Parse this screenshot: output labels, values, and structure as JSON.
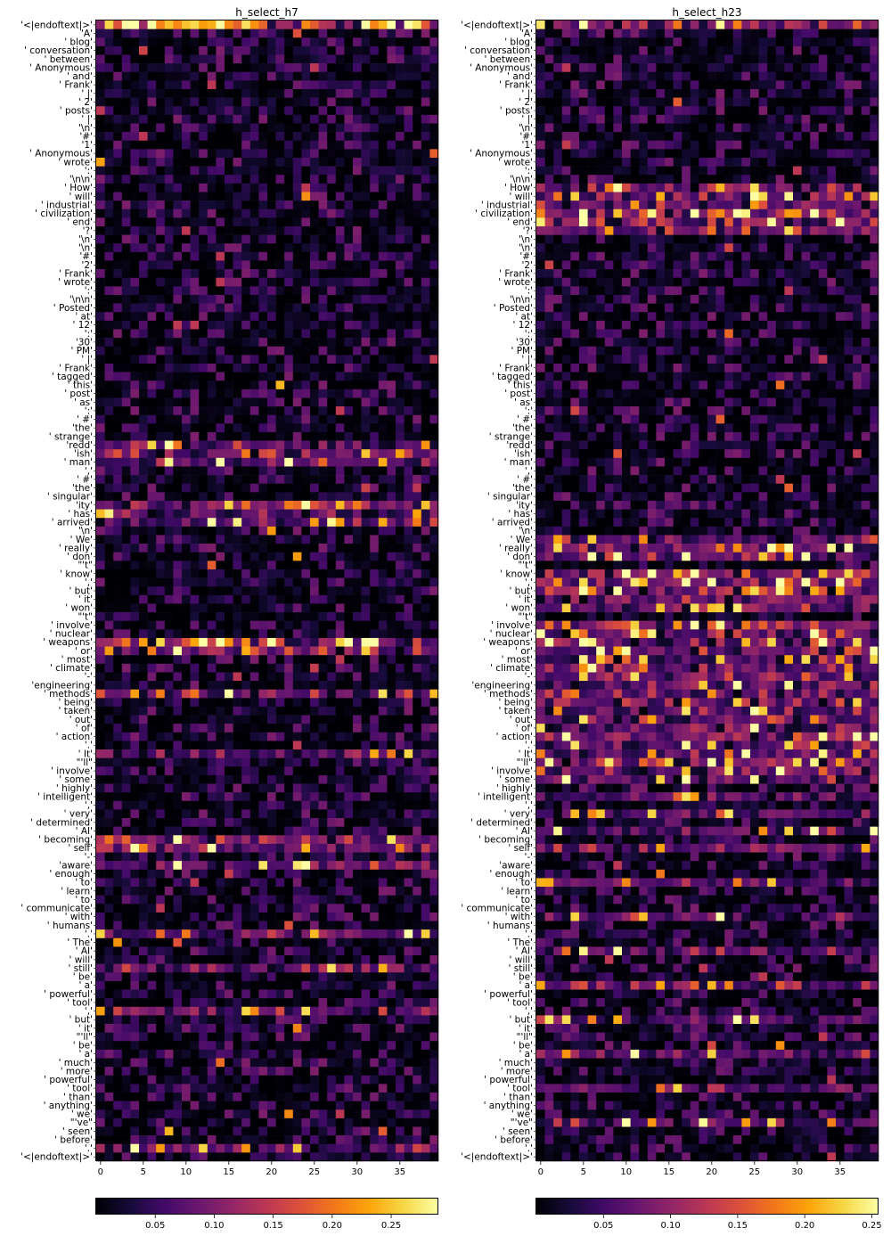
{
  "chart_data": [
    {
      "type": "heatmap",
      "title": "h_select_h7",
      "colormap": "inferno",
      "value_range": [
        0.0,
        0.29
      ],
      "n_columns": 40,
      "x_ticks": [
        "0",
        "5",
        "10",
        "15",
        "20",
        "25",
        "30",
        "35"
      ],
      "colorbar_ticks": [
        "0.05",
        "0.10",
        "0.15",
        "0.20",
        "0.25"
      ],
      "row_highlights": [
        {
          "row": 0,
          "intensity": 0.75
        },
        {
          "row": 49,
          "intensity": 0.28
        },
        {
          "row": 50,
          "intensity": 0.35
        },
        {
          "row": 51,
          "intensity": 0.28
        },
        {
          "row": 56,
          "intensity": 0.42
        },
        {
          "row": 57,
          "intensity": 0.25
        },
        {
          "row": 58,
          "intensity": 0.25
        },
        {
          "row": 72,
          "intensity": 0.45
        },
        {
          "row": 73,
          "intensity": 0.4
        },
        {
          "row": 78,
          "intensity": 0.35
        },
        {
          "row": 85,
          "intensity": 0.25
        },
        {
          "row": 95,
          "intensity": 0.4
        },
        {
          "row": 96,
          "intensity": 0.35
        },
        {
          "row": 98,
          "intensity": 0.35
        },
        {
          "row": 106,
          "intensity": 0.35
        },
        {
          "row": 110,
          "intensity": 0.3
        },
        {
          "row": 115,
          "intensity": 0.3
        },
        {
          "row": 131,
          "intensity": 0.25
        }
      ]
    },
    {
      "type": "heatmap",
      "title": "h_select_h23",
      "colormap": "inferno",
      "value_range": [
        0.0,
        0.255
      ],
      "n_columns": 40,
      "x_ticks": [
        "0",
        "5",
        "10",
        "15",
        "20",
        "25",
        "30",
        "35"
      ],
      "colorbar_ticks": [
        "0.05",
        "0.10",
        "0.15",
        "0.20",
        "0.25"
      ],
      "row_highlights": [
        {
          "row": 0,
          "intensity": 0.4
        },
        {
          "row": 19,
          "intensity": 0.35
        },
        {
          "row": 20,
          "intensity": 0.3
        },
        {
          "row": 21,
          "intensity": 0.35
        },
        {
          "row": 22,
          "intensity": 0.45
        },
        {
          "row": 23,
          "intensity": 0.5
        },
        {
          "row": 24,
          "intensity": 0.4
        },
        {
          "row": 60,
          "intensity": 0.3
        },
        {
          "row": 61,
          "intensity": 0.4
        },
        {
          "row": 62,
          "intensity": 0.3
        },
        {
          "row": 64,
          "intensity": 0.5
        },
        {
          "row": 65,
          "intensity": 0.45
        },
        {
          "row": 66,
          "intensity": 0.4
        },
        {
          "row": 67,
          "intensity": 0.35
        },
        {
          "row": 68,
          "intensity": 0.35
        },
        {
          "row": 70,
          "intensity": 0.4
        },
        {
          "row": 71,
          "intensity": 0.35
        },
        {
          "row": 72,
          "intensity": 0.35
        },
        {
          "row": 73,
          "intensity": 0.35
        },
        {
          "row": 74,
          "intensity": 0.3
        },
        {
          "row": 75,
          "intensity": 0.3
        },
        {
          "row": 76,
          "intensity": 0.3
        },
        {
          "row": 77,
          "intensity": 0.3
        },
        {
          "row": 78,
          "intensity": 0.3
        },
        {
          "row": 79,
          "intensity": 0.3
        },
        {
          "row": 80,
          "intensity": 0.3
        },
        {
          "row": 81,
          "intensity": 0.3
        },
        {
          "row": 82,
          "intensity": 0.3
        },
        {
          "row": 83,
          "intensity": 0.45
        },
        {
          "row": 84,
          "intensity": 0.3
        },
        {
          "row": 85,
          "intensity": 0.3
        },
        {
          "row": 86,
          "intensity": 0.3
        },
        {
          "row": 87,
          "intensity": 0.3
        },
        {
          "row": 88,
          "intensity": 0.3
        },
        {
          "row": 90,
          "intensity": 0.3
        },
        {
          "row": 92,
          "intensity": 0.3
        },
        {
          "row": 94,
          "intensity": 0.3
        },
        {
          "row": 96,
          "intensity": 0.3
        },
        {
          "row": 100,
          "intensity": 0.3
        },
        {
          "row": 104,
          "intensity": 0.3
        },
        {
          "row": 108,
          "intensity": 0.3
        },
        {
          "row": 112,
          "intensity": 0.3
        },
        {
          "row": 116,
          "intensity": 0.3
        },
        {
          "row": 120,
          "intensity": 0.3
        },
        {
          "row": 124,
          "intensity": 0.3
        },
        {
          "row": 128,
          "intensity": 0.3
        }
      ]
    }
  ],
  "tokens": [
    "'<|endoftext|>'",
    "'A'",
    "' blog'",
    "' conversation'",
    "' between'",
    "' Anonymous'",
    "' and'",
    "' Frank'",
    "' |'",
    "' 2'",
    "' posts'",
    "' |'",
    "'\\n'",
    "'#'",
    "'1'",
    "' Anonymous'",
    "' wrote'",
    "':'",
    "'\\n\\n'",
    "' How'",
    "' will'",
    "' industrial'",
    "' civilization'",
    "' end'",
    "'?'",
    "'\\n'",
    "'\\n'",
    "'#'",
    "'2'",
    "' Frank'",
    "' wrote'",
    "':'",
    "'\\n\\n'",
    "' Posted'",
    "' at'",
    "' 12'",
    "':'",
    "'30'",
    "' PM'",
    "' |'",
    "' Frank'",
    "' tagged'",
    "' this'",
    "' post'",
    "' as'",
    "':'",
    "' #'",
    "'the'",
    "' strange'",
    "'redd'",
    "'ish'",
    "' man'",
    "','",
    "' #'",
    "'the'",
    "' singular'",
    "'ity'",
    "' has'",
    "' arrived'",
    "'\\n'",
    "' We'",
    "' really'",
    "' don'",
    "\"'t\"",
    "' know'",
    "','",
    "' but'",
    "' it'",
    "' won'",
    "\"'t\"",
    "' involve'",
    "' nuclear'",
    "' weapons'",
    "' or'",
    "' most'",
    "' climate'",
    "'-'",
    "'engineering'",
    "' methods'",
    "' being'",
    "' taken'",
    "' out'",
    "' of'",
    "' action'",
    "'.'",
    "' It'",
    "\"'ll\"",
    "' involve'",
    "' some'",
    "' highly'",
    "' intelligent'",
    "','",
    "' very'",
    "' determined'",
    "' AI'",
    "' becoming'",
    "' self'",
    "'-'",
    "'aware'",
    "' enough'",
    "' to'",
    "' learn'",
    "' to'",
    "' communicate'",
    "' with'",
    "' humans'",
    "'.'",
    "' The'",
    "' AI'",
    "' will'",
    "' still'",
    "' be'",
    "' a'",
    "' powerful'",
    "' tool'",
    "','",
    "' but'",
    "' it'",
    "\"'ll\"",
    "' be'",
    "' a'",
    "' much'",
    "' more'",
    "' powerful'",
    "' tool'",
    "' than'",
    "' anything'",
    "' we'",
    "\"'ve\"",
    "' seen'",
    "' before'",
    "'.'",
    "'<|endoftext|>'"
  ]
}
